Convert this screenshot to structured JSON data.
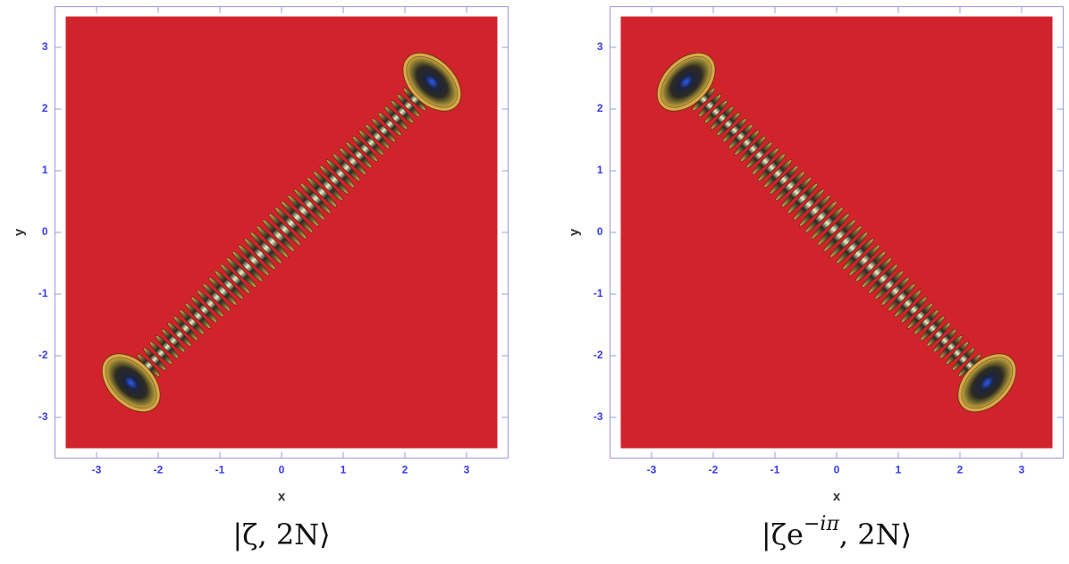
{
  "chart_data": [
    {
      "type": "contour",
      "xlabel": "x",
      "ylabel": "y",
      "xlim": [
        -3.5,
        3.5
      ],
      "ylim": [
        -3.5,
        3.5
      ],
      "xticks": [
        -3,
        -2,
        -1,
        0,
        1,
        2,
        3
      ],
      "yticks": [
        -3,
        -2,
        -1,
        0,
        1,
        2,
        3
      ],
      "color": "#d0232b",
      "caption": {
        "base": "|ζ, 2N⟩"
      }
    },
    {
      "type": "contour",
      "xlabel": "x",
      "ylabel": "y",
      "xlim": [
        -3.5,
        3.5
      ],
      "ylim": [
        -3.5,
        3.5
      ],
      "xticks": [
        -3,
        -2,
        -1,
        0,
        1,
        2,
        3
      ],
      "yticks": [
        -3,
        -2,
        -1,
        0,
        1,
        2,
        3
      ],
      "color": "#d0232b",
      "caption": {
        "base": "|ζe",
        "sup": "−iπ",
        "rest": ", 2N⟩"
      }
    }
  ]
}
